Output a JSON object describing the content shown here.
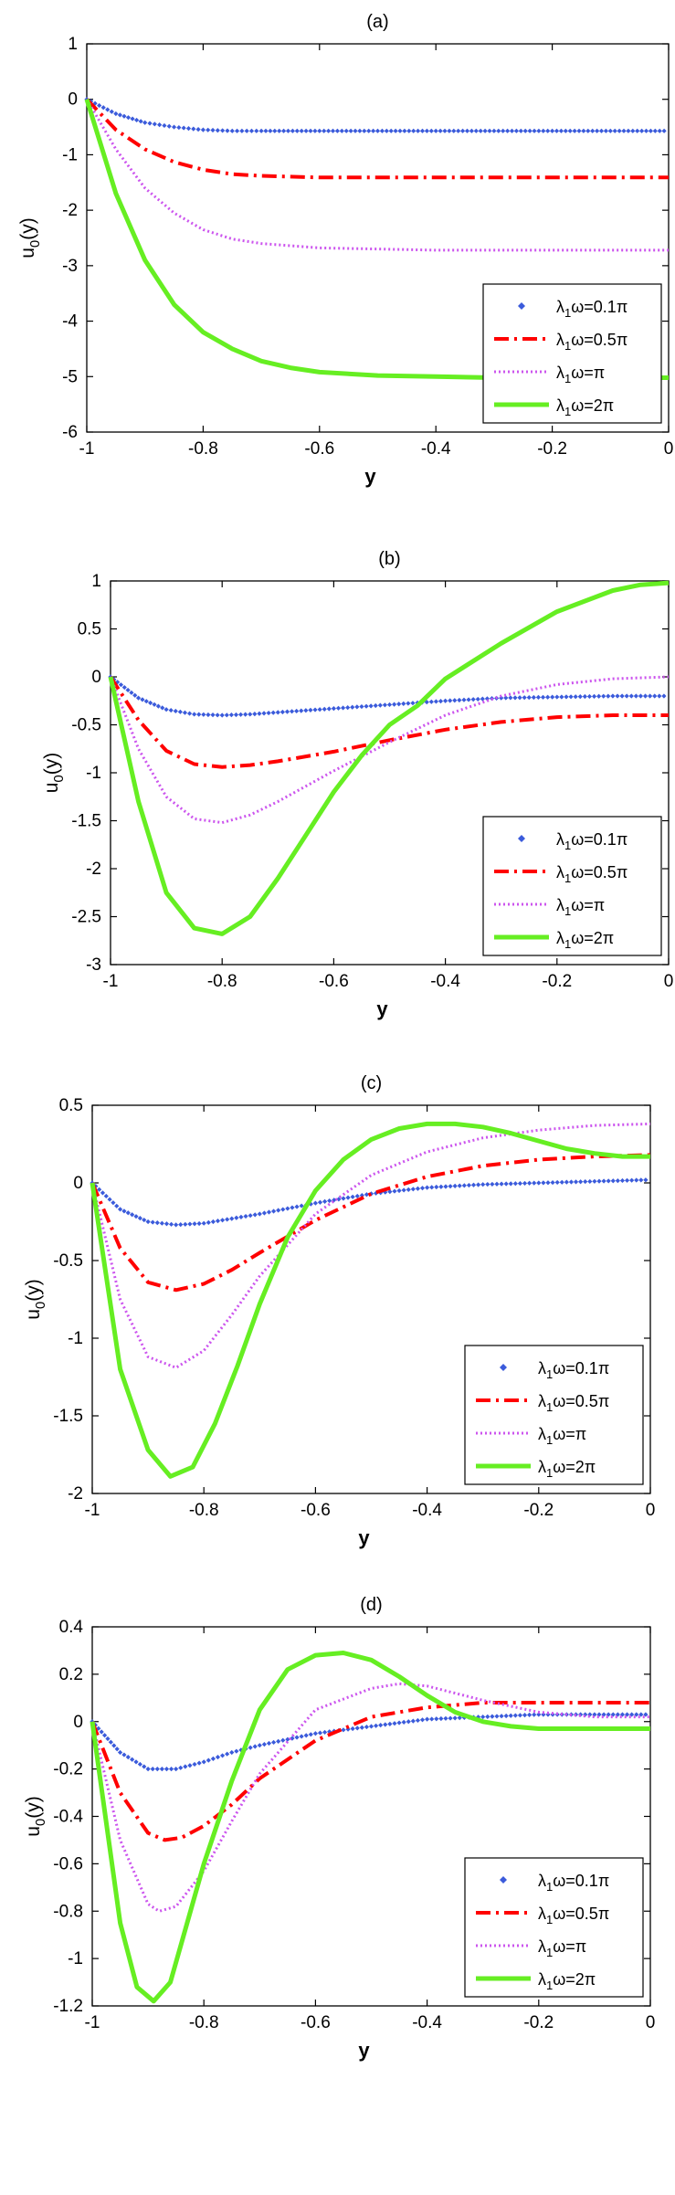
{
  "colors": {
    "s0": "#3b5bdb",
    "s1": "#ff0000",
    "s2": "#cc55ee",
    "s3": "#66ee22",
    "axis": "#000000"
  },
  "chart_data": [
    {
      "type": "line",
      "title": "(a)",
      "xlabel": "y",
      "ylabel": "u0(y)",
      "xlim": [
        -1,
        0
      ],
      "ylim": [
        -6,
        1
      ],
      "xticks": [
        -1,
        -0.8,
        -0.6,
        -0.4,
        -0.2,
        0
      ],
      "xtick_labels": [
        "-1",
        "-0.8",
        "-0.6",
        "-0.4",
        "-0.2",
        "0"
      ],
      "yticks": [
        1,
        0,
        -1,
        -2,
        -3,
        -4,
        -5,
        -6
      ],
      "ytick_labels": [
        "1",
        "0",
        "-1",
        "-2",
        "-3",
        "-4",
        "-5",
        "-6"
      ],
      "legend_position": "bottom-right",
      "series": [
        {
          "name": "λ1ω=0.1π",
          "color": "#3b5bdb",
          "style": "points",
          "x": [
            -1,
            -0.95,
            -0.9,
            -0.85,
            -0.8,
            -0.75,
            -0.7,
            -0.6,
            -0.5,
            -0.4,
            -0.3,
            -0.2,
            -0.1,
            0
          ],
          "y": [
            0,
            -0.26,
            -0.42,
            -0.5,
            -0.55,
            -0.57,
            -0.57,
            -0.57,
            -0.57,
            -0.57,
            -0.57,
            -0.57,
            -0.57,
            -0.57
          ]
        },
        {
          "name": "λ1ω=0.5π",
          "color": "#ff0000",
          "style": "dashdot",
          "x": [
            -1,
            -0.95,
            -0.9,
            -0.85,
            -0.8,
            -0.75,
            -0.7,
            -0.6,
            -0.5,
            -0.4,
            -0.3,
            -0.2,
            -0.1,
            0
          ],
          "y": [
            0,
            -0.55,
            -0.9,
            -1.13,
            -1.27,
            -1.35,
            -1.38,
            -1.41,
            -1.41,
            -1.41,
            -1.41,
            -1.41,
            -1.41,
            -1.41
          ]
        },
        {
          "name": "λ1ω=π",
          "color": "#cc55ee",
          "style": "dotted",
          "x": [
            -1,
            -0.95,
            -0.9,
            -0.85,
            -0.8,
            -0.75,
            -0.7,
            -0.6,
            -0.5,
            -0.4,
            -0.3,
            -0.2,
            -0.1,
            0
          ],
          "y": [
            0,
            -0.9,
            -1.6,
            -2.05,
            -2.35,
            -2.52,
            -2.6,
            -2.68,
            -2.7,
            -2.72,
            -2.72,
            -2.72,
            -2.72,
            -2.72
          ]
        },
        {
          "name": "λ1ω=2π",
          "color": "#66ee22",
          "style": "solid",
          "x": [
            -1,
            -0.95,
            -0.9,
            -0.85,
            -0.8,
            -0.75,
            -0.7,
            -0.65,
            -0.6,
            -0.5,
            -0.4,
            -0.3,
            -0.2,
            -0.1,
            0
          ],
          "y": [
            0,
            -1.7,
            -2.9,
            -3.7,
            -4.2,
            -4.5,
            -4.72,
            -4.84,
            -4.92,
            -4.98,
            -5.0,
            -5.02,
            -5.02,
            -5.02,
            -5.02
          ]
        }
      ]
    },
    {
      "type": "line",
      "title": "(b)",
      "xlabel": "y",
      "ylabel": "u0(y)",
      "xlim": [
        -1,
        0
      ],
      "ylim": [
        -3,
        1
      ],
      "xticks": [
        -1,
        -0.8,
        -0.6,
        -0.4,
        -0.2,
        0
      ],
      "xtick_labels": [
        "-1",
        "-0.8",
        "-0.6",
        "-0.4",
        "-0.2",
        "0"
      ],
      "yticks": [
        1,
        0.5,
        0,
        -0.5,
        -1,
        -1.5,
        -2,
        -2.5,
        -3
      ],
      "ytick_labels": [
        "1",
        "0.5",
        "0",
        "-0.5",
        "-1",
        "-1.5",
        "-2",
        "-2.5",
        "-3"
      ],
      "legend_position": "bottom-right",
      "series": [
        {
          "name": "λ1ω=0.1π",
          "color": "#3b5bdb",
          "style": "points",
          "x": [
            -1,
            -0.95,
            -0.9,
            -0.85,
            -0.8,
            -0.75,
            -0.7,
            -0.6,
            -0.5,
            -0.4,
            -0.3,
            -0.2,
            -0.1,
            0
          ],
          "y": [
            0,
            -0.22,
            -0.34,
            -0.39,
            -0.4,
            -0.39,
            -0.37,
            -0.33,
            -0.29,
            -0.25,
            -0.22,
            -0.21,
            -0.2,
            -0.2
          ]
        },
        {
          "name": "λ1ω=0.5π",
          "color": "#ff0000",
          "style": "dashdot",
          "x": [
            -1,
            -0.95,
            -0.9,
            -0.85,
            -0.8,
            -0.75,
            -0.7,
            -0.6,
            -0.5,
            -0.4,
            -0.3,
            -0.2,
            -0.1,
            0
          ],
          "y": [
            0,
            -0.45,
            -0.77,
            -0.91,
            -0.94,
            -0.92,
            -0.88,
            -0.78,
            -0.66,
            -0.55,
            -0.47,
            -0.42,
            -0.4,
            -0.4
          ]
        },
        {
          "name": "λ1ω=π",
          "color": "#cc55ee",
          "style": "dotted",
          "x": [
            -1,
            -0.95,
            -0.9,
            -0.85,
            -0.8,
            -0.75,
            -0.7,
            -0.6,
            -0.5,
            -0.4,
            -0.3,
            -0.2,
            -0.1,
            0
          ],
          "y": [
            0,
            -0.75,
            -1.25,
            -1.48,
            -1.52,
            -1.44,
            -1.3,
            -0.98,
            -0.68,
            -0.4,
            -0.2,
            -0.08,
            -0.02,
            0
          ]
        },
        {
          "name": "λ1ω=2π",
          "color": "#66ee22",
          "style": "solid",
          "x": [
            -1,
            -0.95,
            -0.9,
            -0.85,
            -0.8,
            -0.75,
            -0.7,
            -0.65,
            -0.6,
            -0.55,
            -0.5,
            -0.45,
            -0.4,
            -0.3,
            -0.2,
            -0.1,
            -0.05,
            0
          ],
          "y": [
            0,
            -1.3,
            -2.25,
            -2.62,
            -2.68,
            -2.5,
            -2.1,
            -1.65,
            -1.2,
            -0.82,
            -0.5,
            -0.3,
            -0.02,
            0.35,
            0.68,
            0.9,
            0.96,
            0.98
          ]
        }
      ]
    },
    {
      "type": "line",
      "title": "(c)",
      "xlabel": "y",
      "ylabel": "u0(y)",
      "xlim": [
        -1,
        0
      ],
      "ylim": [
        -2,
        0.5
      ],
      "xticks": [
        -1,
        -0.8,
        -0.6,
        -0.4,
        -0.2,
        0
      ],
      "xtick_labels": [
        "-1",
        "-0.8",
        "-0.6",
        "-0.4",
        "-0.2",
        "0"
      ],
      "yticks": [
        0.5,
        0,
        -0.5,
        -1,
        -1.5,
        -2
      ],
      "ytick_labels": [
        "0.5",
        "0",
        "-0.5",
        "-1",
        "-1.5",
        "-2"
      ],
      "legend_position": "bottom-right",
      "series": [
        {
          "name": "λ1ω=0.1π",
          "color": "#3b5bdb",
          "style": "points",
          "x": [
            -1,
            -0.95,
            -0.9,
            -0.85,
            -0.8,
            -0.75,
            -0.7,
            -0.6,
            -0.5,
            -0.4,
            -0.3,
            -0.2,
            -0.1,
            0
          ],
          "y": [
            0,
            -0.17,
            -0.25,
            -0.27,
            -0.26,
            -0.23,
            -0.2,
            -0.13,
            -0.07,
            -0.03,
            -0.01,
            0,
            0.01,
            0.02
          ]
        },
        {
          "name": "λ1ω=0.5π",
          "color": "#ff0000",
          "style": "dashdot",
          "x": [
            -1,
            -0.95,
            -0.9,
            -0.85,
            -0.8,
            -0.75,
            -0.7,
            -0.6,
            -0.5,
            -0.4,
            -0.3,
            -0.2,
            -0.1,
            0
          ],
          "y": [
            0,
            -0.42,
            -0.64,
            -0.69,
            -0.65,
            -0.56,
            -0.45,
            -0.24,
            -0.07,
            0.04,
            0.11,
            0.15,
            0.17,
            0.18
          ]
        },
        {
          "name": "λ1ω=π",
          "color": "#cc55ee",
          "style": "dotted",
          "x": [
            -1,
            -0.95,
            -0.9,
            -0.85,
            -0.8,
            -0.75,
            -0.7,
            -0.6,
            -0.5,
            -0.4,
            -0.3,
            -0.2,
            -0.1,
            0
          ],
          "y": [
            0,
            -0.75,
            -1.12,
            -1.19,
            -1.08,
            -0.85,
            -0.6,
            -0.2,
            0.05,
            0.2,
            0.29,
            0.34,
            0.37,
            0.38
          ]
        },
        {
          "name": "λ1ω=2π",
          "color": "#66ee22",
          "style": "solid",
          "x": [
            -1,
            -0.95,
            -0.9,
            -0.86,
            -0.82,
            -0.78,
            -0.74,
            -0.7,
            -0.65,
            -0.6,
            -0.55,
            -0.5,
            -0.45,
            -0.4,
            -0.35,
            -0.3,
            -0.25,
            -0.2,
            -0.15,
            -0.1,
            -0.05,
            0
          ],
          "y": [
            0,
            -1.2,
            -1.72,
            -1.89,
            -1.83,
            -1.55,
            -1.18,
            -0.78,
            -0.35,
            -0.05,
            0.15,
            0.28,
            0.35,
            0.38,
            0.38,
            0.36,
            0.32,
            0.27,
            0.22,
            0.19,
            0.17,
            0.17
          ]
        }
      ]
    },
    {
      "type": "line",
      "title": "(d)",
      "xlabel": "y",
      "ylabel": "u0(y)",
      "xlim": [
        -1,
        0
      ],
      "ylim": [
        -1.2,
        0.4
      ],
      "xticks": [
        -1,
        -0.8,
        -0.6,
        -0.4,
        -0.2,
        0
      ],
      "xtick_labels": [
        "-1",
        "-0.8",
        "-0.6",
        "-0.4",
        "-0.2",
        "0"
      ],
      "yticks": [
        0.4,
        0.2,
        0,
        -0.2,
        -0.4,
        -0.6,
        -0.8,
        -1,
        -1.2
      ],
      "ytick_labels": [
        "0.4",
        "0.2",
        "0",
        "-0.2",
        "-0.4",
        "-0.6",
        "-0.8",
        "-1",
        "-1.2"
      ],
      "legend_position": "bottom-right",
      "series": [
        {
          "name": "λ1ω=0.1π",
          "color": "#3b5bdb",
          "style": "points",
          "x": [
            -1,
            -0.95,
            -0.9,
            -0.85,
            -0.8,
            -0.75,
            -0.7,
            -0.6,
            -0.5,
            -0.4,
            -0.3,
            -0.2,
            -0.1,
            0
          ],
          "y": [
            0,
            -0.13,
            -0.2,
            -0.2,
            -0.17,
            -0.13,
            -0.1,
            -0.05,
            -0.02,
            0.01,
            0.02,
            0.03,
            0.03,
            0.03
          ]
        },
        {
          "name": "λ1ω=0.5π",
          "color": "#ff0000",
          "style": "dashdot",
          "x": [
            -1,
            -0.95,
            -0.9,
            -0.87,
            -0.84,
            -0.8,
            -0.75,
            -0.7,
            -0.6,
            -0.5,
            -0.4,
            -0.3,
            -0.2,
            -0.1,
            0
          ],
          "y": [
            0,
            -0.3,
            -0.47,
            -0.5,
            -0.49,
            -0.44,
            -0.35,
            -0.24,
            -0.08,
            0.02,
            0.06,
            0.08,
            0.08,
            0.08,
            0.08
          ]
        },
        {
          "name": "λ1ω=π",
          "color": "#cc55ee",
          "style": "dotted",
          "x": [
            -1,
            -0.95,
            -0.9,
            -0.88,
            -0.85,
            -0.8,
            -0.75,
            -0.7,
            -0.6,
            -0.5,
            -0.45,
            -0.4,
            -0.35,
            -0.3,
            -0.2,
            -0.1,
            0
          ],
          "y": [
            0,
            -0.5,
            -0.77,
            -0.8,
            -0.78,
            -0.63,
            -0.42,
            -0.22,
            0.05,
            0.14,
            0.16,
            0.15,
            0.12,
            0.09,
            0.04,
            0.02,
            0.02
          ]
        },
        {
          "name": "λ1ω=2π",
          "color": "#66ee22",
          "style": "solid",
          "x": [
            -1,
            -0.95,
            -0.92,
            -0.89,
            -0.86,
            -0.83,
            -0.8,
            -0.75,
            -0.7,
            -0.65,
            -0.6,
            -0.55,
            -0.5,
            -0.45,
            -0.4,
            -0.35,
            -0.3,
            -0.25,
            -0.2,
            -0.15,
            -0.1,
            -0.05,
            0
          ],
          "y": [
            0,
            -0.85,
            -1.12,
            -1.18,
            -1.1,
            -0.85,
            -0.6,
            -0.25,
            0.05,
            0.22,
            0.28,
            0.29,
            0.26,
            0.19,
            0.11,
            0.04,
            0.0,
            -0.02,
            -0.03,
            -0.03,
            -0.03,
            -0.03,
            -0.03
          ]
        }
      ]
    }
  ]
}
